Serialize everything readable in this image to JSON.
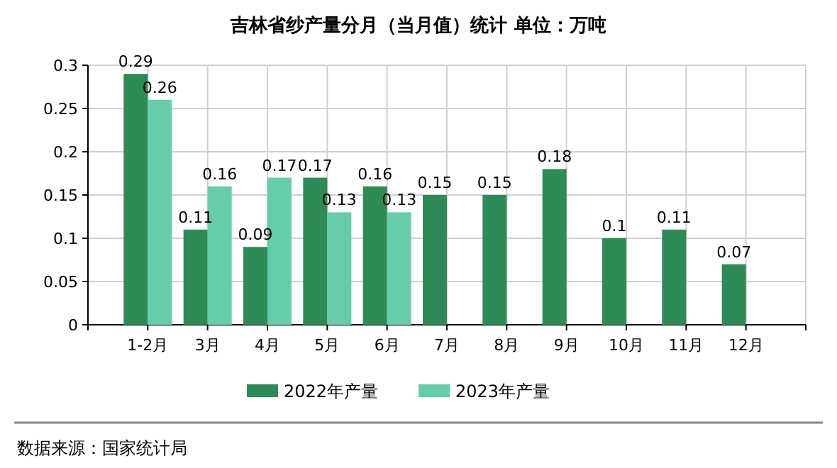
{
  "chart_data": {
    "type": "bar",
    "title": "吉林省纱产量分月（当月值）统计 单位：万吨",
    "categories": [
      "1-2月",
      "3月",
      "4月",
      "5月",
      "6月",
      "7月",
      "8月",
      "9月",
      "10月",
      "11月",
      "12月"
    ],
    "series": [
      {
        "name": "2022年产量",
        "color": "#2e8b57",
        "values": [
          0.29,
          0.11,
          0.09,
          0.17,
          0.16,
          0.15,
          0.15,
          0.18,
          0.1,
          0.11,
          0.07
        ]
      },
      {
        "name": "2023年产量",
        "color": "#66cdaa",
        "values": [
          0.26,
          0.16,
          0.17,
          0.13,
          0.13,
          null,
          null,
          null,
          null,
          null,
          null
        ]
      }
    ],
    "ylim": [
      0,
      0.3
    ],
    "yticks": [
      0,
      0.05,
      0.1,
      0.15,
      0.2,
      0.25,
      0.3
    ],
    "grid": true,
    "legend": "bottom",
    "data_labels": true,
    "annotations": [
      "数据来源：国家统计局"
    ]
  }
}
